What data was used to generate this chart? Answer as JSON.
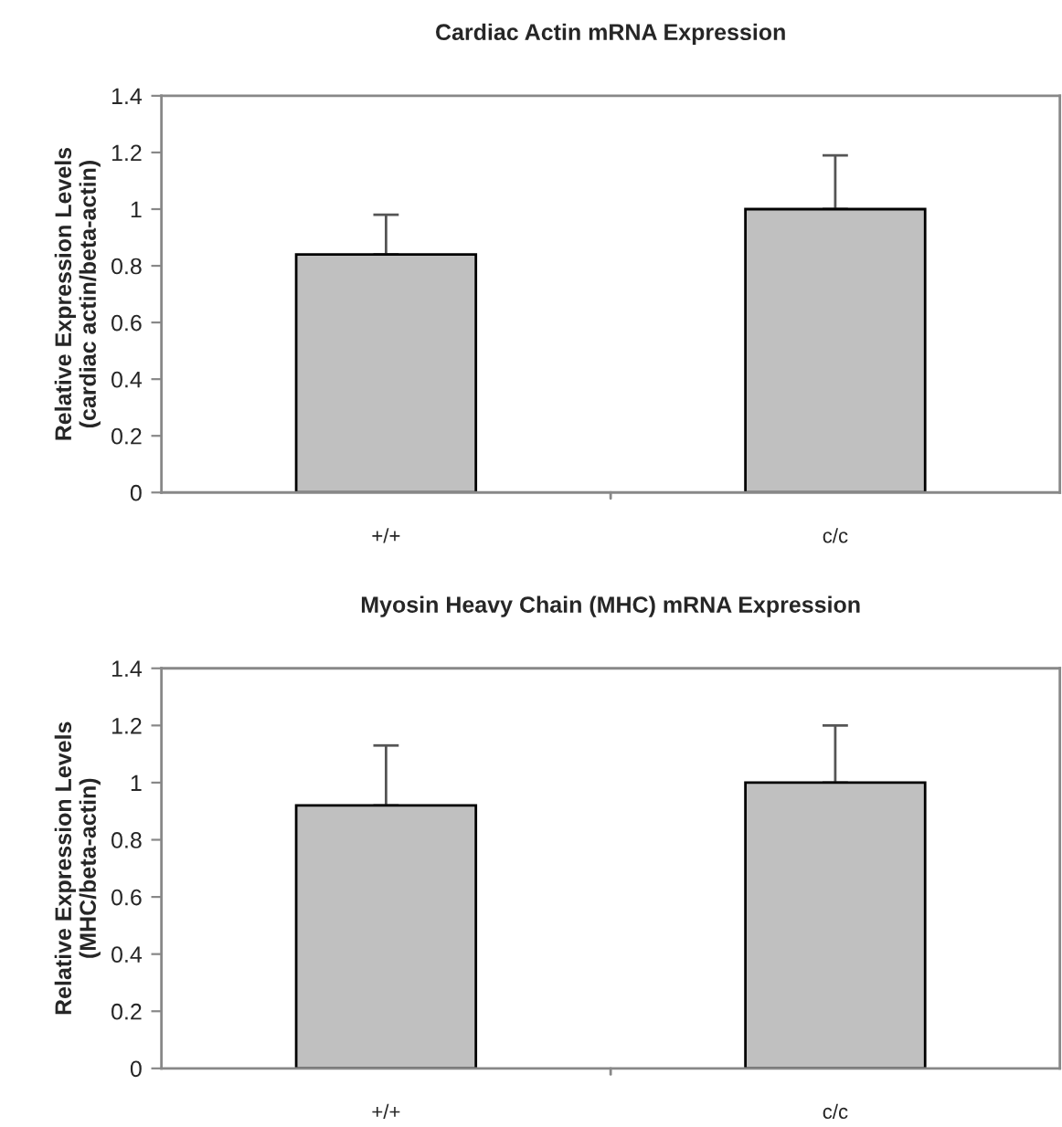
{
  "chart_data": [
    {
      "type": "bar",
      "title": "Cardiac Actin mRNA Expression",
      "ylabel": "Relative Expression Levels\n(cardiac actin/beta-actin)",
      "categories": [
        "+/+",
        "c/c"
      ],
      "values": [
        0.84,
        1.0
      ],
      "errors": [
        [
          0.84,
          0.98
        ],
        [
          1.0,
          1.19
        ]
      ],
      "color": "#c0c0c0",
      "ylim": [
        0,
        1.4
      ],
      "yticks": [
        0,
        0.2,
        0.4,
        0.6,
        0.8,
        1,
        1.2,
        1.4
      ]
    },
    {
      "type": "bar",
      "title": "Myosin Heavy Chain (MHC) mRNA Expression",
      "ylabel": "Relative Expression Levels\n(MHC/beta-actin)",
      "categories": [
        "+/+",
        "c/c"
      ],
      "values": [
        0.92,
        1.0
      ],
      "errors": [
        [
          0.92,
          1.13
        ],
        [
          1.0,
          1.2
        ]
      ],
      "color": "#c0c0c0",
      "ylim": [
        0,
        1.4
      ],
      "yticks": [
        0,
        0.2,
        0.4,
        0.6,
        0.8,
        1,
        1.2,
        1.4
      ]
    }
  ]
}
